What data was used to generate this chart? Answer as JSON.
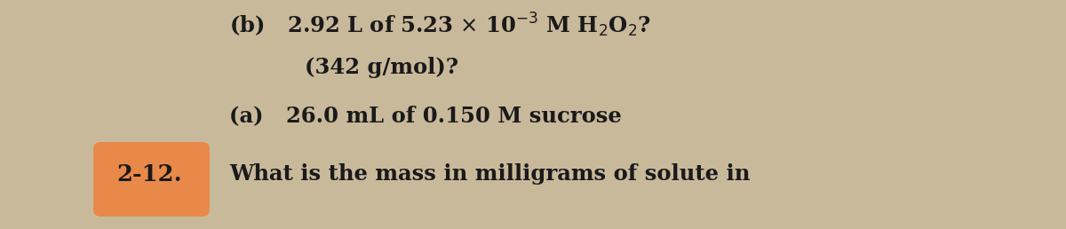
{
  "bg_color": "#c9b99b",
  "highlight_color": "#e8894a",
  "text_color": "#1a1a1a",
  "problem_number": "2-12.",
  "line1": "What is the mass in milligrams of solute in",
  "line2": "(a)   26.0 mL of 0.150 M sucrose",
  "line3": "          (342 g/mol)?",
  "line4": "(b)   2.92 L of 5.23 $\\times$ 10$^{-3}$ M H$_2$O$_2$?",
  "main_fontsize": 17.5,
  "num_fontsize": 18.5,
  "fig_width": 12.0,
  "fig_height": 2.58,
  "dpi": 100
}
